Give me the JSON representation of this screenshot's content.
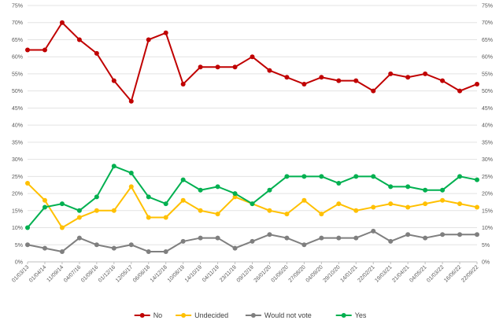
{
  "chart_data": {
    "type": "line",
    "title": "",
    "xlabel": "",
    "ylabel": "",
    "ylim": [
      0,
      75
    ],
    "y_ticks": [
      "0%",
      "5%",
      "10%",
      "15%",
      "20%",
      "25%",
      "30%",
      "35%",
      "40%",
      "45%",
      "50%",
      "55%",
      "60%",
      "65%",
      "70%",
      "75%"
    ],
    "grid": "horizontal",
    "legend_position": "bottom",
    "x": [
      "01/03/13",
      "01/04/14",
      "11/09/14",
      "04/07/16",
      "01/09/16",
      "01/12/16",
      "12/05/17",
      "06/06/18",
      "14/12/18",
      "10/08/19",
      "14/10/19",
      "04/11/19",
      "23/11/19",
      "09/12/19",
      "26/01/20",
      "01/06/20",
      "27/08/20",
      "04/09/20",
      "29/10/20",
      "14/01/21",
      "22/02/21",
      "19/03/21",
      "21/04/21",
      "04/05/21",
      "01/03/22",
      "16/06/22",
      "22/09/22"
    ],
    "series": [
      {
        "name": "No",
        "color": "#c00000",
        "values": [
          62,
          62,
          70,
          65,
          61,
          53,
          47,
          65,
          67,
          52,
          57,
          57,
          57,
          60,
          56,
          54,
          52,
          54,
          53,
          53,
          50,
          55,
          54,
          55,
          53,
          50,
          52
        ]
      },
      {
        "name": "Undecided",
        "color": "#ffc000",
        "values": [
          23,
          18,
          10,
          13,
          15,
          15,
          22,
          13,
          13,
          18,
          15,
          14,
          19,
          17,
          15,
          14,
          18,
          14,
          17,
          15,
          16,
          17,
          16,
          17,
          18,
          17,
          16
        ]
      },
      {
        "name": "Would not vote",
        "color": "#7f7f7f",
        "values": [
          5,
          4,
          3,
          7,
          5,
          4,
          5,
          3,
          3,
          6,
          7,
          7,
          4,
          6,
          8,
          7,
          5,
          7,
          7,
          7,
          9,
          6,
          8,
          7,
          8,
          8,
          8
        ]
      },
      {
        "name": "Yes",
        "color": "#00b050",
        "values": [
          10,
          16,
          17,
          15,
          19,
          28,
          26,
          19,
          17,
          24,
          21,
          22,
          20,
          17,
          21,
          25,
          25,
          25,
          23,
          25,
          25,
          22,
          22,
          21,
          21,
          25,
          24
        ]
      }
    ]
  }
}
